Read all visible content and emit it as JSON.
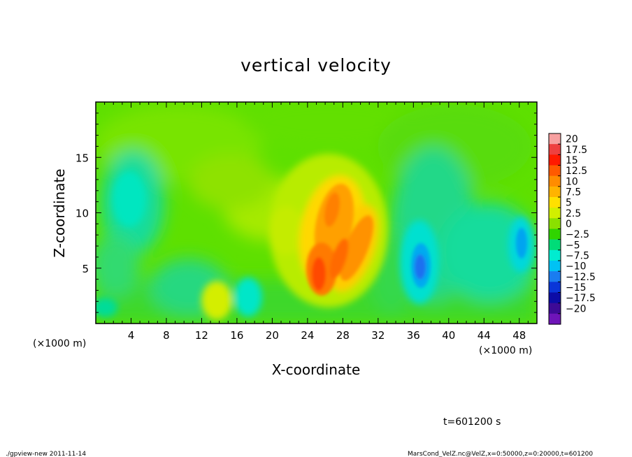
{
  "chart_data": {
    "type": "heatmap",
    "title": "vertical velocity",
    "xlabel": "X-coordinate",
    "ylabel": "Z-coordinate",
    "x_unit": "(×1000 m)",
    "y_unit": "(×1000 m)",
    "xlim": [
      0,
      50
    ],
    "ylim": [
      0,
      20
    ],
    "x_ticks": [
      4,
      8,
      12,
      16,
      20,
      24,
      28,
      32,
      36,
      40,
      44,
      48
    ],
    "y_ticks": [
      5,
      10,
      15
    ],
    "colorbar": {
      "min": -20,
      "max": 20,
      "step": 2.5,
      "labels": [
        "20",
        "17.5",
        "15",
        "12.5",
        "10",
        "7.5",
        "5",
        "2.5",
        "0",
        "−2.5",
        "−5",
        "−7.5",
        "−10",
        "−12.5",
        "−15",
        "−17.5",
        "−20"
      ],
      "colors": [
        "#f7a0a0",
        "#ee4040",
        "#ff1a00",
        "#ff5a00",
        "#ff8c00",
        "#ffb300",
        "#ffe000",
        "#d2ef00",
        "#8ae000",
        "#30d400",
        "#00dc78",
        "#00ecd0",
        "#00c2f4",
        "#1a7cf0",
        "#0a36d8",
        "#0c0ca6",
        "#3d0a96",
        "#6e14b8"
      ]
    },
    "features": [
      {
        "x": 26.0,
        "z": 5.5,
        "value": 12.0
      },
      {
        "x": 25.0,
        "z": 4.5,
        "value": 13.5
      },
      {
        "x": 27.0,
        "z": 9.0,
        "value": 9.0
      },
      {
        "x": 28.5,
        "z": 5.5,
        "value": 9.5
      },
      {
        "x": 29.5,
        "z": 7.5,
        "value": 7.0
      },
      {
        "x": 14.0,
        "z": 2.0,
        "value": 6.0
      },
      {
        "x": 37.0,
        "z": 5.0,
        "value": -10.0
      },
      {
        "x": 48.0,
        "z": 6.5,
        "value": -7.5
      },
      {
        "x": 4.0,
        "z": 11.0,
        "value": -5.0
      },
      {
        "x": 17.0,
        "z": 2.5,
        "value": -5.0
      },
      {
        "x": 20.0,
        "z": 9.5,
        "value": 4.0
      }
    ]
  },
  "time_label": "t=601200 s",
  "footer": {
    "program": "./gpview-new  2011-11-14",
    "source": "MarsCond_VelZ.nc@VelZ,x=0:50000,z=0:20000,t=601200"
  }
}
